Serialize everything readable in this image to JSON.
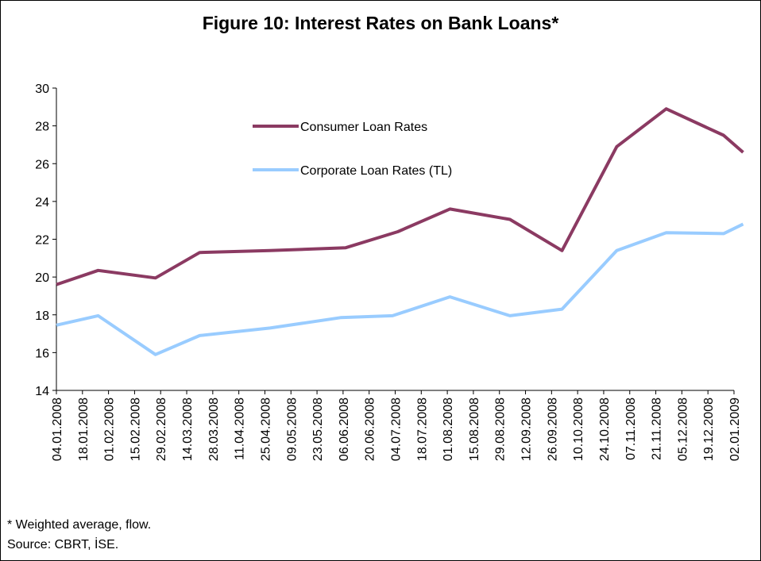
{
  "chart_data": {
    "type": "line",
    "title": "Figure 10: Interest Rates on Bank Loans*",
    "ylim": [
      14,
      30
    ],
    "yticks": [
      14,
      16,
      18,
      20,
      22,
      24,
      26,
      28,
      30
    ],
    "categories": [
      "04.01.2008",
      "18.01.2008",
      "01.02.2008",
      "15.02.2008",
      "29.02.2008",
      "14.03.2008",
      "28.03.2008",
      "11.04.2008",
      "25.04.2008",
      "09.05.2008",
      "23.05.2008",
      "06.06.2008",
      "20.06.2008",
      "04.07.2008",
      "18.07.2008",
      "01.08.2008",
      "15.08.2008",
      "29.08.2008",
      "12.09.2008",
      "26.09.2008",
      "10.10.2008",
      "24.10.2008",
      "07.11.2008",
      "21.11.2008",
      "05.12.2008",
      "19.12.2008",
      "02.01.2009"
    ],
    "grid": false,
    "legend_position": "top-left",
    "series": [
      {
        "name": "Consumer Loan Rates",
        "color": "#8b3a62",
        "points": [
          {
            "x": 0,
            "y": 19.6
          },
          {
            "x": 1.6,
            "y": 20.35
          },
          {
            "x": 3.8,
            "y": 19.95
          },
          {
            "x": 5.5,
            "y": 21.3
          },
          {
            "x": 8.2,
            "y": 21.4
          },
          {
            "x": 11.1,
            "y": 21.55
          },
          {
            "x": 13.1,
            "y": 22.4
          },
          {
            "x": 15.1,
            "y": 23.6
          },
          {
            "x": 17.4,
            "y": 23.05
          },
          {
            "x": 19.4,
            "y": 21.4
          },
          {
            "x": 21.5,
            "y": 26.9
          },
          {
            "x": 23.4,
            "y": 28.9
          },
          {
            "x": 25.6,
            "y": 27.5
          },
          {
            "x": 26.35,
            "y": 26.6
          }
        ]
      },
      {
        "name": "Corporate Loan Rates (TL)",
        "color": "#99ccff",
        "points": [
          {
            "x": 0,
            "y": 17.45
          },
          {
            "x": 1.6,
            "y": 17.95
          },
          {
            "x": 3.8,
            "y": 15.9
          },
          {
            "x": 5.5,
            "y": 16.9
          },
          {
            "x": 8.2,
            "y": 17.3
          },
          {
            "x": 10.9,
            "y": 17.85
          },
          {
            "x": 12.9,
            "y": 17.95
          },
          {
            "x": 15.1,
            "y": 18.95
          },
          {
            "x": 17.4,
            "y": 17.95
          },
          {
            "x": 19.4,
            "y": 18.3
          },
          {
            "x": 21.5,
            "y": 21.4
          },
          {
            "x": 23.4,
            "y": 22.35
          },
          {
            "x": 25.6,
            "y": 22.3
          },
          {
            "x": 26.35,
            "y": 22.8
          }
        ]
      }
    ]
  },
  "footer": {
    "note": "* Weighted average, flow.",
    "source": "Source: CBRT, İSE."
  }
}
